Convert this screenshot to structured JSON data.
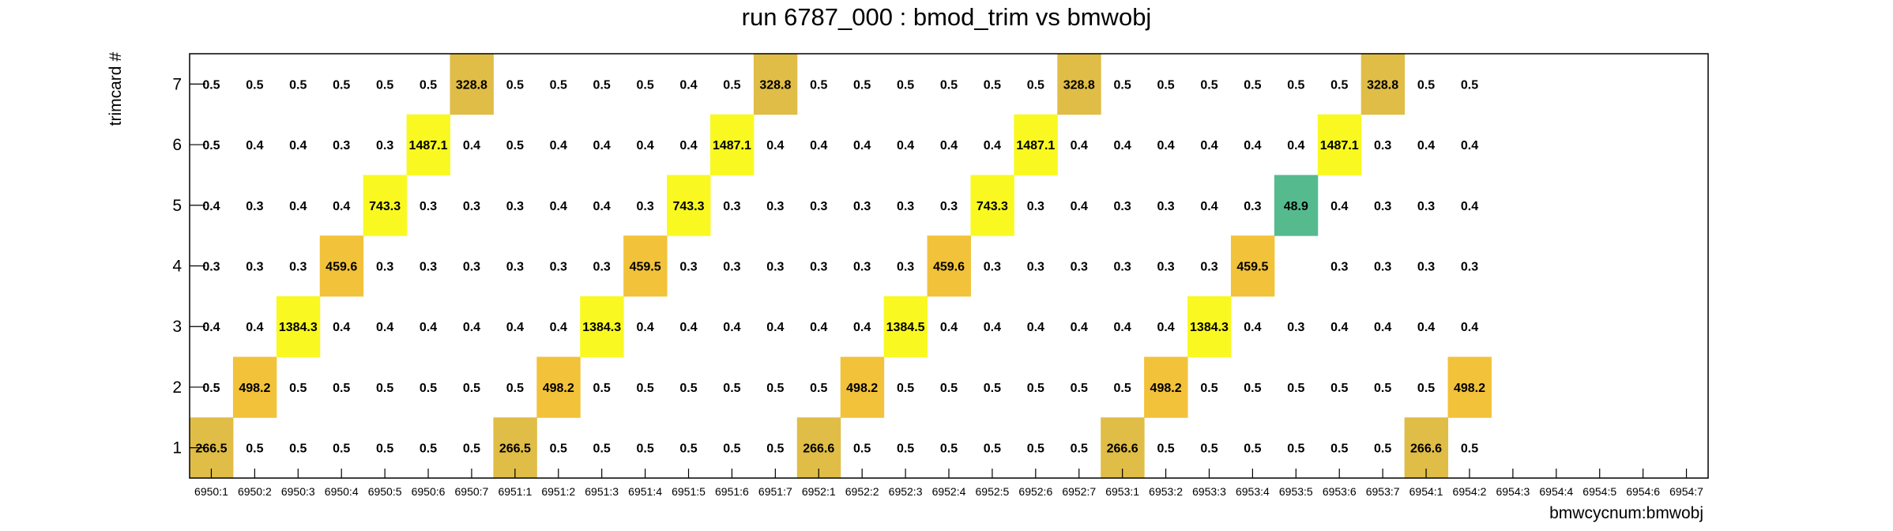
{
  "chart_data": {
    "type": "heatmap",
    "title": "run 6787_000 : bmod_trim vs bmwobj",
    "xlabel": "bmwcycnum:bmwobj",
    "ylabel": "trimcard #",
    "x_categories": [
      "6950:1",
      "6950:2",
      "6950:3",
      "6950:4",
      "6950:5",
      "6950:6",
      "6950:7",
      "6951:1",
      "6951:2",
      "6951:3",
      "6951:4",
      "6951:5",
      "6951:6",
      "6951:7",
      "6952:1",
      "6952:2",
      "6952:3",
      "6952:4",
      "6952:5",
      "6952:6",
      "6952:7",
      "6953:1",
      "6953:2",
      "6953:3",
      "6953:4",
      "6953:5",
      "6953:6",
      "6953:7",
      "6954:1",
      "6954:2",
      "6954:3",
      "6954:4",
      "6954:5",
      "6954:6",
      "6954:7"
    ],
    "y_categories": [
      "1",
      "2",
      "3",
      "4",
      "5",
      "6",
      "7"
    ],
    "values": [
      [
        266.5,
        0.5,
        0.5,
        0.5,
        0.5,
        0.5,
        0.5,
        266.5,
        0.5,
        0.5,
        0.5,
        0.5,
        0.5,
        0.5,
        266.6,
        0.5,
        0.5,
        0.5,
        0.5,
        0.5,
        0.5,
        266.6,
        0.5,
        0.5,
        0.5,
        0.5,
        0.5,
        0.5,
        266.6,
        0.5,
        null,
        null,
        null,
        null,
        null
      ],
      [
        0.5,
        498.2,
        0.5,
        0.5,
        0.5,
        0.5,
        0.5,
        0.5,
        498.2,
        0.5,
        0.5,
        0.5,
        0.5,
        0.5,
        0.5,
        498.2,
        0.5,
        0.5,
        0.5,
        0.5,
        0.5,
        0.5,
        498.2,
        0.5,
        0.5,
        0.5,
        0.5,
        0.5,
        0.5,
        498.2,
        null,
        null,
        null,
        null,
        null
      ],
      [
        0.4,
        0.4,
        1384.3,
        0.4,
        0.4,
        0.4,
        0.4,
        0.4,
        0.4,
        1384.3,
        0.4,
        0.4,
        0.4,
        0.4,
        0.4,
        0.4,
        1384.5,
        0.4,
        0.4,
        0.4,
        0.4,
        0.4,
        0.4,
        1384.3,
        0.4,
        0.3,
        0.4,
        0.4,
        0.4,
        0.4,
        null,
        null,
        null,
        null,
        null
      ],
      [
        0.3,
        0.3,
        0.3,
        459.6,
        0.3,
        0.3,
        0.3,
        0.3,
        0.3,
        0.3,
        459.5,
        0.3,
        0.3,
        0.3,
        0.3,
        0.3,
        0.3,
        459.6,
        0.3,
        0.3,
        0.3,
        0.3,
        0.3,
        0.3,
        459.5,
        null,
        0.3,
        0.3,
        0.3,
        0.3,
        null,
        null,
        null,
        null,
        null
      ],
      [
        0.4,
        0.3,
        0.4,
        0.4,
        743.3,
        0.3,
        0.3,
        0.3,
        0.4,
        0.4,
        0.3,
        743.3,
        0.3,
        0.3,
        0.3,
        0.3,
        0.3,
        0.3,
        743.3,
        0.3,
        0.4,
        0.3,
        0.3,
        0.4,
        0.3,
        48.9,
        0.4,
        0.3,
        0.3,
        0.4,
        null,
        null,
        null,
        null,
        null
      ],
      [
        0.5,
        0.4,
        0.4,
        0.3,
        0.3,
        1487.1,
        0.4,
        0.5,
        0.4,
        0.4,
        0.4,
        0.4,
        1487.1,
        0.4,
        0.4,
        0.4,
        0.4,
        0.4,
        0.4,
        1487.1,
        0.4,
        0.4,
        0.4,
        0.4,
        0.4,
        0.4,
        1487.1,
        0.3,
        0.4,
        0.4,
        null,
        null,
        null,
        null,
        null
      ],
      [
        0.5,
        0.5,
        0.5,
        0.5,
        0.5,
        0.5,
        328.8,
        0.5,
        0.5,
        0.5,
        0.5,
        0.4,
        0.5,
        328.8,
        0.5,
        0.5,
        0.5,
        0.5,
        0.5,
        0.5,
        328.8,
        0.5,
        0.5,
        0.5,
        0.5,
        0.5,
        0.5,
        328.8,
        0.5,
        0.5,
        null,
        null,
        null,
        null,
        null
      ]
    ],
    "colors": {
      "high": "#f9f921",
      "mid_high": "#f7d533",
      "mid": "#f2c23a",
      "low_mid": "#e0bd47",
      "low": "#55bb8f",
      "frame": "#000000"
    },
    "grid": false,
    "legend": "none"
  }
}
